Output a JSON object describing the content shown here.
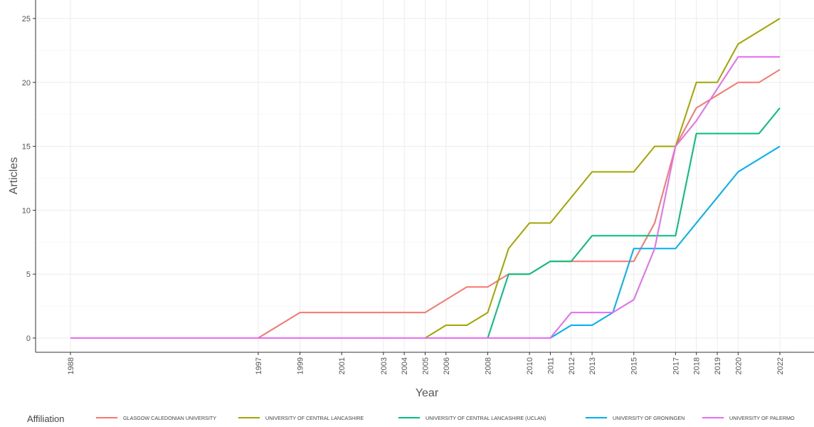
{
  "chart_data": {
    "type": "line",
    "xlabel": "Year",
    "ylabel": "Articles",
    "xlim": [
      1988,
      2022
    ],
    "ylim": [
      0,
      25
    ],
    "x_tick_labels": [
      1988,
      1997,
      1999,
      2001,
      2003,
      2004,
      2005,
      2006,
      2008,
      2010,
      2011,
      2012,
      2013,
      2015,
      2017,
      2018,
      2019,
      2020,
      2022
    ],
    "y_tick_labels": [
      0,
      5,
      10,
      15,
      20,
      25
    ],
    "grid": true,
    "legend": {
      "title": "Affiliation",
      "position": "bottom"
    },
    "series": [
      {
        "name": "GLASGOW CALEDONIAN UNIVERSITY",
        "color": "#F8766D",
        "points": [
          [
            1988,
            0
          ],
          [
            1997,
            0
          ],
          [
            1999,
            2
          ],
          [
            2005,
            2
          ],
          [
            2007,
            4
          ],
          [
            2008,
            4
          ],
          [
            2009,
            5
          ],
          [
            2010,
            5
          ],
          [
            2011,
            6
          ],
          [
            2015,
            6
          ],
          [
            2016,
            9
          ],
          [
            2017,
            15
          ],
          [
            2018,
            18
          ],
          [
            2020,
            20
          ],
          [
            2021,
            20
          ],
          [
            2022,
            21
          ]
        ]
      },
      {
        "name": "UNIVERSITY OF CENTRAL LANCASHIRE",
        "color": "#A3A500",
        "points": [
          [
            1988,
            0
          ],
          [
            2005,
            0
          ],
          [
            2006,
            1
          ],
          [
            2007,
            1
          ],
          [
            2008,
            2
          ],
          [
            2009,
            7
          ],
          [
            2010,
            9
          ],
          [
            2011,
            9
          ],
          [
            2013,
            13
          ],
          [
            2015,
            13
          ],
          [
            2016,
            15
          ],
          [
            2017,
            15
          ],
          [
            2018,
            20
          ],
          [
            2019,
            20
          ],
          [
            2020,
            23
          ],
          [
            2022,
            25
          ]
        ]
      },
      {
        "name": "UNIVERSITY OF CENTRAL LANCASHIRE (UCLAN)",
        "color": "#00BF7D",
        "points": [
          [
            1988,
            0
          ],
          [
            2008,
            0
          ],
          [
            2009,
            5
          ],
          [
            2010,
            5
          ],
          [
            2011,
            6
          ],
          [
            2012,
            6
          ],
          [
            2013,
            8
          ],
          [
            2017,
            8
          ],
          [
            2018,
            16
          ],
          [
            2021,
            16
          ],
          [
            2022,
            18
          ]
        ]
      },
      {
        "name": "UNIVERSITY OF GRONINGEN",
        "color": "#00B0F6",
        "points": [
          [
            1988,
            0
          ],
          [
            2011,
            0
          ],
          [
            2012,
            1
          ],
          [
            2013,
            1
          ],
          [
            2014,
            2
          ],
          [
            2015,
            7
          ],
          [
            2017,
            7
          ],
          [
            2020,
            13
          ],
          [
            2022,
            15
          ]
        ]
      },
      {
        "name": "UNIVERSITY OF PALERMO",
        "color": "#E76BF3",
        "points": [
          [
            1988,
            0
          ],
          [
            2011,
            0
          ],
          [
            2012,
            2
          ],
          [
            2014,
            2
          ],
          [
            2015,
            3
          ],
          [
            2016,
            7
          ],
          [
            2017,
            15
          ],
          [
            2018,
            17
          ],
          [
            2020,
            22
          ],
          [
            2022,
            22
          ]
        ]
      }
    ]
  }
}
